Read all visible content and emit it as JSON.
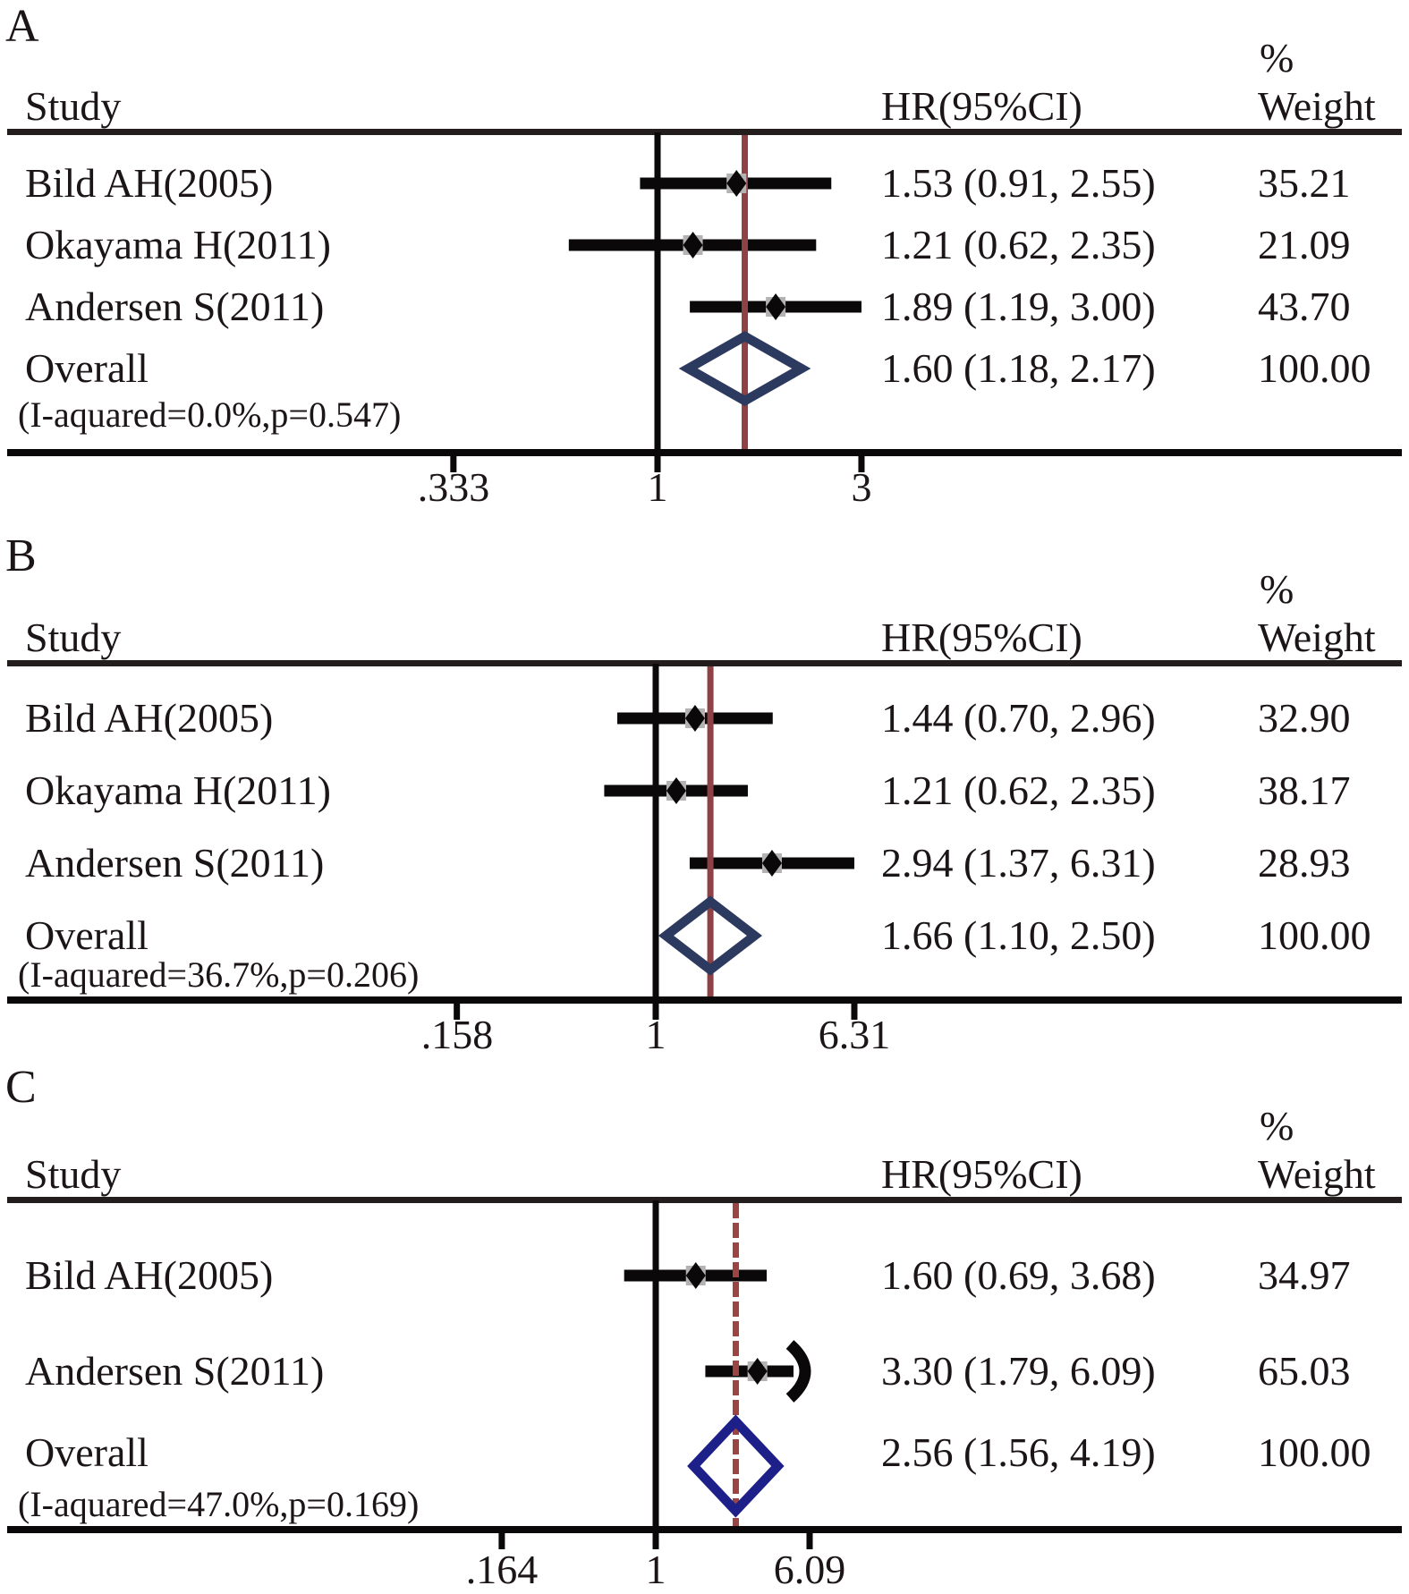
{
  "colors": {
    "text": "#1c1517",
    "ink": "#0b0809",
    "header_rule": "#241d1e",
    "marker_box": "#b3b3b3",
    "overall_line_ab": "#8f4246",
    "overall_line_c": "#9c4444",
    "diamond_ab": "#2c3a5f",
    "diamond_c": "#1e2089"
  },
  "chart_data": [
    {
      "type": "forest",
      "panel": "A",
      "columns": {
        "study": "Study",
        "hr": "HR(95%CI)",
        "pct": "%",
        "weight": "Weight"
      },
      "x_axis": {
        "scale": "log",
        "null_value": 1,
        "ticks": [
          {
            "label": ".333",
            "value": 0.333
          },
          {
            "label": "1",
            "value": 1
          },
          {
            "label": "3",
            "value": 3
          }
        ]
      },
      "rows": [
        {
          "study": "Bild AH(2005)",
          "hr": 1.53,
          "ci_low": 0.91,
          "ci_high": 2.55,
          "hr_text": "1.53 (0.91, 2.55)",
          "weight_text": "35.21"
        },
        {
          "study": "Okayama H(2011)",
          "hr": 1.21,
          "ci_low": 0.62,
          "ci_high": 2.35,
          "hr_text": "1.21 (0.62, 2.35)",
          "weight_text": "21.09"
        },
        {
          "study": "Andersen S(2011)",
          "hr": 1.89,
          "ci_low": 1.19,
          "ci_high": 3.0,
          "hr_text": "1.89 (1.19, 3.00)",
          "weight_text": "43.70"
        }
      ],
      "overall": {
        "label": "Overall",
        "hr": 1.6,
        "ci_low": 1.18,
        "ci_high": 2.17,
        "hr_text": "1.60 (1.18, 2.17)",
        "weight_text": "100.00",
        "heterogeneity": "(I-aquared=0.0%,p=0.547)"
      },
      "overall_line_style": "solid"
    },
    {
      "type": "forest",
      "panel": "B",
      "columns": {
        "study": "Study",
        "hr": "HR(95%CI)",
        "pct": "%",
        "weight": "Weight"
      },
      "x_axis": {
        "scale": "log",
        "null_value": 1,
        "ticks": [
          {
            "label": ".158",
            "value": 0.158
          },
          {
            "label": "1",
            "value": 1
          },
          {
            "label": "6.31",
            "value": 6.31
          }
        ]
      },
      "rows": [
        {
          "study": "Bild AH(2005)",
          "hr": 1.44,
          "ci_low": 0.7,
          "ci_high": 2.96,
          "hr_text": "1.44 (0.70, 2.96)",
          "weight_text": "32.90"
        },
        {
          "study": "Okayama H(2011)",
          "hr": 1.21,
          "ci_low": 0.62,
          "ci_high": 2.35,
          "hr_text": "1.21 (0.62, 2.35)",
          "weight_text": "38.17"
        },
        {
          "study": "Andersen S(2011)",
          "hr": 2.94,
          "ci_low": 1.37,
          "ci_high": 6.31,
          "hr_text": "2.94 (1.37, 6.31)",
          "weight_text": "28.93"
        }
      ],
      "overall": {
        "label": "Overall",
        "hr": 1.66,
        "ci_low": 1.1,
        "ci_high": 2.5,
        "hr_text": "1.66 (1.10, 2.50)",
        "weight_text": "100.00",
        "heterogeneity": "(I-aquared=36.7%,p=0.206)"
      },
      "overall_line_style": "solid"
    },
    {
      "type": "forest",
      "panel": "C",
      "columns": {
        "study": "Study",
        "hr": "HR(95%CI)",
        "pct": "%",
        "weight": "Weight"
      },
      "x_axis": {
        "scale": "log",
        "null_value": 1,
        "ticks": [
          {
            "label": ".164",
            "value": 0.164
          },
          {
            "label": "1",
            "value": 1
          },
          {
            "label": "6.09",
            "value": 6.09
          }
        ]
      },
      "rows": [
        {
          "study": "Bild AH(2005)",
          "hr": 1.6,
          "ci_low": 0.69,
          "ci_high": 3.68,
          "hr_text": "1.60 (0.69, 3.68)",
          "weight_text": "34.97"
        },
        {
          "study": "Andersen S(2011)",
          "hr": 3.3,
          "ci_low": 1.79,
          "ci_high": 6.09,
          "hr_text": "3.30 (1.79, 6.09)",
          "weight_text": "65.03",
          "ci_arrow_high": true
        }
      ],
      "overall": {
        "label": "Overall",
        "hr": 2.56,
        "ci_low": 1.56,
        "ci_high": 4.19,
        "hr_text": "2.56 (1.56, 4.19)",
        "weight_text": "100.00",
        "heterogeneity": "(I-aquared=47.0%,p=0.169)"
      },
      "overall_line_style": "dashed"
    }
  ]
}
